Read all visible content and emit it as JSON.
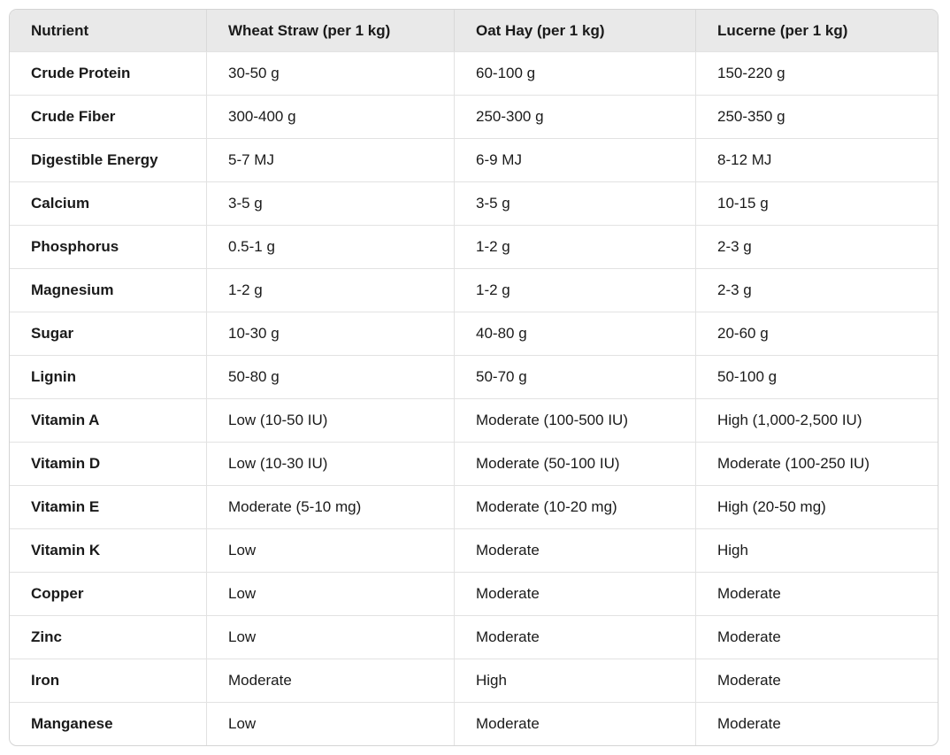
{
  "table": {
    "columns": [
      "Nutrient",
      "Wheat Straw (per 1 kg)",
      "Oat Hay (per 1 kg)",
      "Lucerne (per 1 kg)"
    ],
    "rows": [
      [
        "Crude Protein",
        "30-50 g",
        "60-100 g",
        "150-220 g"
      ],
      [
        "Crude Fiber",
        "300-400 g",
        "250-300 g",
        "250-350 g"
      ],
      [
        "Digestible Energy",
        "5-7 MJ",
        "6-9 MJ",
        "8-12 MJ"
      ],
      [
        "Calcium",
        "3-5 g",
        "3-5 g",
        "10-15 g"
      ],
      [
        "Phosphorus",
        "0.5-1 g",
        "1-2 g",
        "2-3 g"
      ],
      [
        "Magnesium",
        "1-2 g",
        "1-2 g",
        "2-3 g"
      ],
      [
        "Sugar",
        "10-30 g",
        "40-80 g",
        "20-60 g"
      ],
      [
        "Lignin",
        "50-80 g",
        "50-70 g",
        "50-100 g"
      ],
      [
        "Vitamin A",
        "Low (10-50 IU)",
        "Moderate (100-500 IU)",
        "High (1,000-2,500 IU)"
      ],
      [
        "Vitamin D",
        "Low (10-30 IU)",
        "Moderate (50-100 IU)",
        "Moderate (100-250 IU)"
      ],
      [
        "Vitamin E",
        "Moderate (5-10 mg)",
        "Moderate (10-20 mg)",
        "High (20-50 mg)"
      ],
      [
        "Vitamin K",
        "Low",
        "Moderate",
        "High"
      ],
      [
        "Copper",
        "Low",
        "Moderate",
        "Moderate"
      ],
      [
        "Zinc",
        "Low",
        "Moderate",
        "Moderate"
      ],
      [
        "Iron",
        "Moderate",
        "High",
        "Moderate"
      ],
      [
        "Manganese",
        "Low",
        "Moderate",
        "Moderate"
      ]
    ]
  },
  "colors": {
    "header_background": "#e9e9e9",
    "row_border": "#e2e2e2",
    "outer_border": "#d4d4d4",
    "text": "#1a1a1a",
    "background": "#ffffff"
  }
}
